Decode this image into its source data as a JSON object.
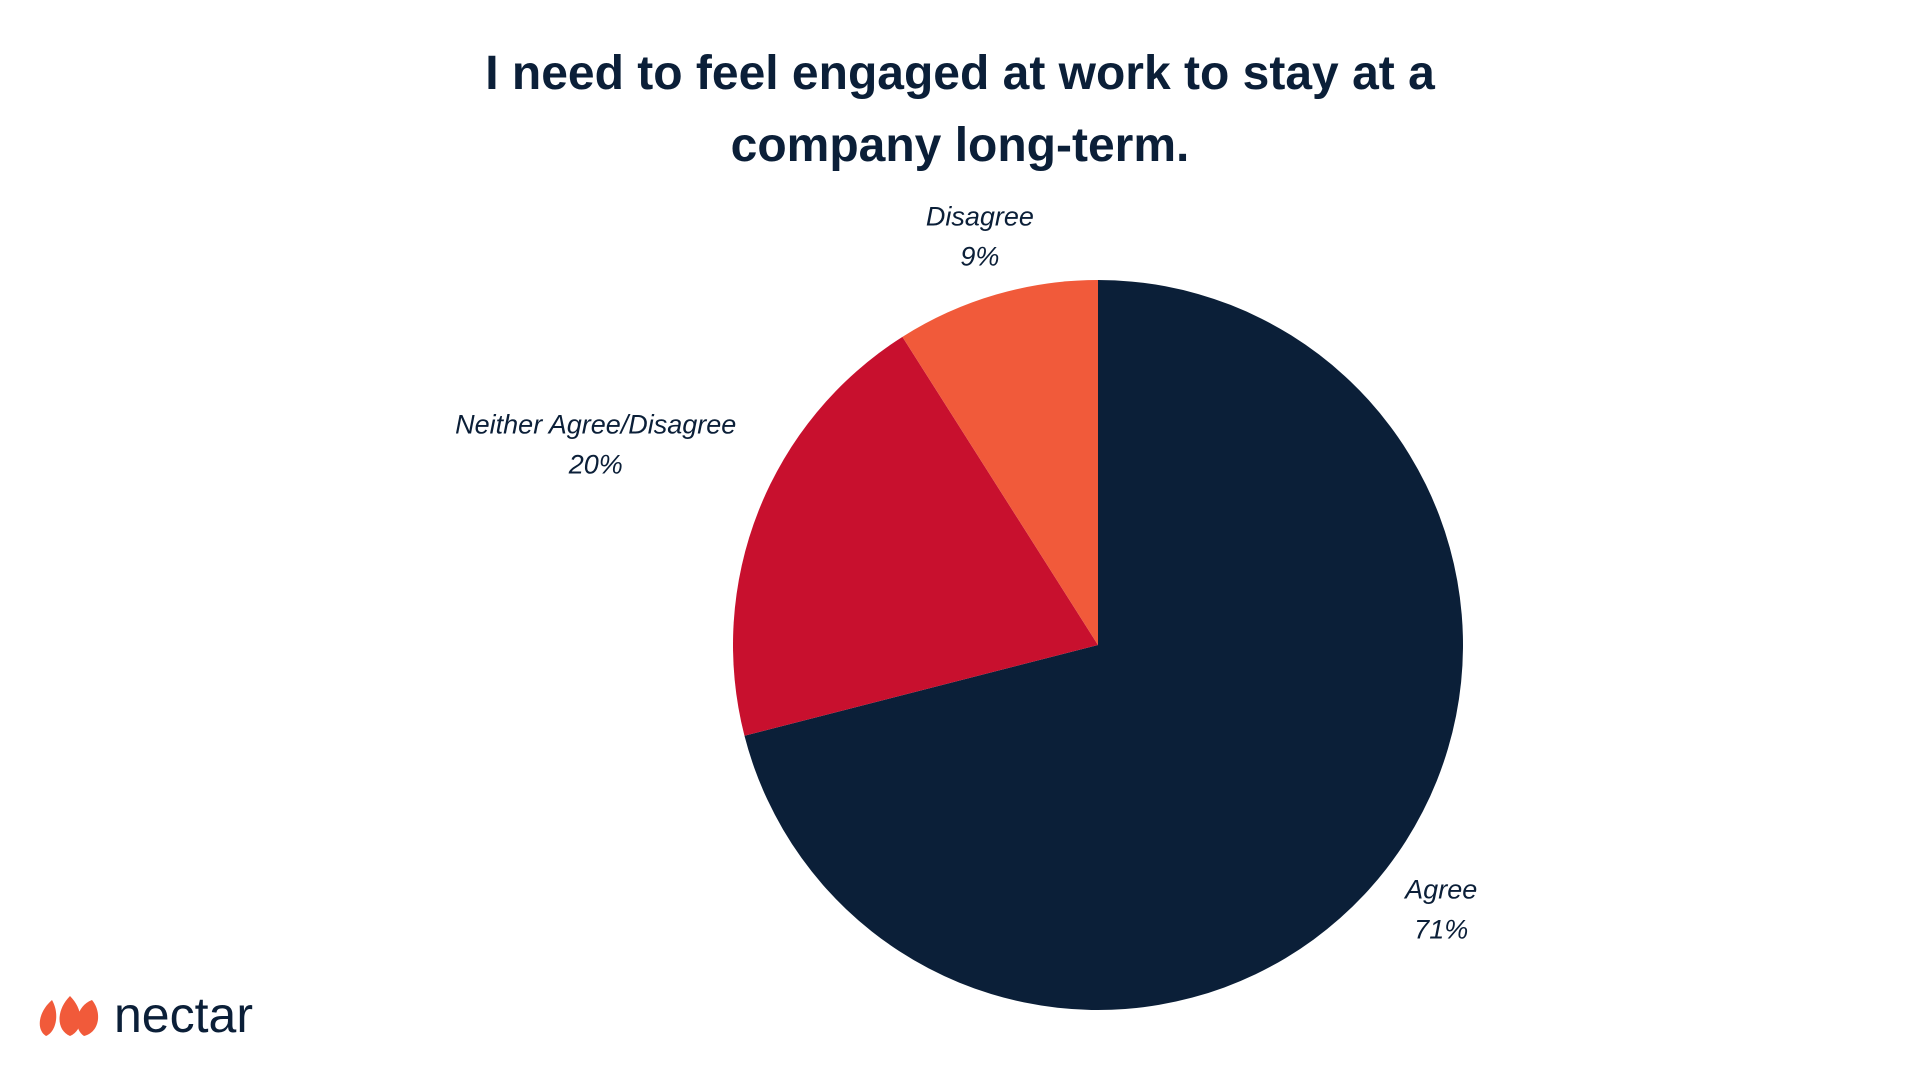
{
  "chart_data": {
    "type": "pie",
    "title": "I need to feel engaged at work to stay at a company long-term.",
    "categories": [
      "Agree",
      "Neither Agree/Disagree",
      "Disagree"
    ],
    "values": [
      71,
      20,
      9
    ],
    "value_labels": [
      "71%",
      "20%",
      "9%"
    ],
    "colors": [
      "#0b1f38",
      "#c8102e",
      "#f15a3a"
    ]
  },
  "logo": "nectar"
}
